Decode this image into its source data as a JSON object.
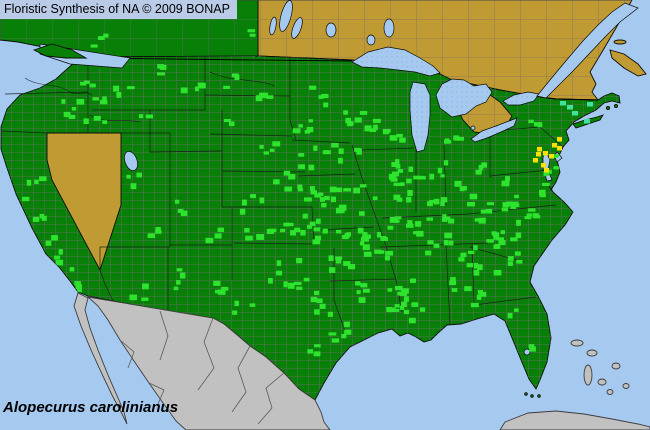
{
  "header": {
    "title": "Floristic Synthesis of NA © 2009 BONAP"
  },
  "footer": {
    "species": "Alopecurus carolinianus"
  },
  "legend": {
    "state_present_color": "#088008",
    "county_present_color": "#2EE32E",
    "county_rare_color": "#FFE000",
    "county_adventive_color": "#3FE39E",
    "state_absent_color": "#C09A32",
    "outside_region_color": "#C1C1C1",
    "water_color": "#A6CAEF",
    "county_line_color": "#6F6A72",
    "state_line_color": "#1A1A1A",
    "title_bg_color": "#B9CBE6",
    "meanings": {
      "dark_green": "species present in state/province",
      "bright_green": "species present in county",
      "yellow": "present in county, rare",
      "teal": "present in county, adventive",
      "tan": "species absent from state/province",
      "gray": "outside floristic coverage",
      "blue": "water"
    }
  },
  "map": {
    "county_clusters": [
      [
        88,
        90,
        7,
        16,
        10
      ],
      [
        62,
        108,
        4,
        10,
        10
      ],
      [
        95,
        122,
        3,
        12,
        8
      ],
      [
        30,
        185,
        4,
        10,
        14
      ],
      [
        42,
        225,
        5,
        12,
        16
      ],
      [
        60,
        260,
        4,
        10,
        12
      ],
      [
        76,
        287,
        3,
        9,
        6
      ],
      [
        118,
        85,
        3,
        10,
        8
      ],
      [
        138,
        112,
        2,
        8,
        6
      ],
      [
        158,
        68,
        3,
        12,
        8
      ],
      [
        192,
        82,
        3,
        12,
        8
      ],
      [
        222,
        122,
        2,
        8,
        6
      ],
      [
        135,
        182,
        3,
        10,
        10
      ],
      [
        152,
        225,
        3,
        10,
        10
      ],
      [
        182,
        205,
        3,
        10,
        10
      ],
      [
        210,
        233,
        3,
        10,
        8
      ],
      [
        172,
        278,
        4,
        12,
        10
      ],
      [
        135,
        290,
        3,
        10,
        8
      ],
      [
        215,
        288,
        4,
        12,
        10
      ],
      [
        240,
        305,
        3,
        10,
        8
      ],
      [
        96,
        38,
        3,
        10,
        7
      ],
      [
        243,
        30,
        2,
        8,
        6
      ],
      [
        228,
        80,
        3,
        10,
        8
      ],
      [
        268,
        95,
        4,
        14,
        10
      ],
      [
        300,
        118,
        5,
        16,
        12
      ],
      [
        322,
        95,
        4,
        14,
        10
      ],
      [
        350,
        110,
        3,
        10,
        8
      ],
      [
        372,
        122,
        4,
        10,
        8
      ],
      [
        392,
        138,
        5,
        12,
        10
      ],
      [
        345,
        152,
        5,
        16,
        10
      ],
      [
        310,
        155,
        5,
        16,
        12
      ],
      [
        262,
        150,
        4,
        14,
        10
      ],
      [
        285,
        178,
        6,
        16,
        12
      ],
      [
        310,
        196,
        9,
        20,
        14
      ],
      [
        345,
        198,
        9,
        18,
        14
      ],
      [
        285,
        222,
        8,
        18,
        12
      ],
      [
        315,
        230,
        7,
        16,
        12
      ],
      [
        350,
        232,
        8,
        16,
        12
      ],
      [
        372,
        250,
        8,
        14,
        14
      ],
      [
        385,
        225,
        6,
        12,
        12
      ],
      [
        385,
        185,
        8,
        16,
        14
      ],
      [
        400,
        162,
        6,
        12,
        12
      ],
      [
        418,
        185,
        6,
        12,
        12
      ],
      [
        438,
        165,
        4,
        10,
        10
      ],
      [
        452,
        140,
        4,
        10,
        8
      ],
      [
        460,
        185,
        4,
        10,
        10
      ],
      [
        478,
        170,
        3,
        8,
        8
      ],
      [
        418,
        222,
        6,
        14,
        10
      ],
      [
        438,
        242,
        6,
        14,
        10
      ],
      [
        465,
        255,
        5,
        12,
        10
      ],
      [
        485,
        268,
        5,
        12,
        10
      ],
      [
        455,
        285,
        4,
        10,
        8
      ],
      [
        478,
        295,
        4,
        10,
        8
      ],
      [
        398,
        285,
        7,
        12,
        12
      ],
      [
        408,
        310,
        6,
        12,
        10
      ],
      [
        385,
        305,
        4,
        10,
        8
      ],
      [
        290,
        272,
        9,
        22,
        16
      ],
      [
        320,
        300,
        6,
        16,
        12
      ],
      [
        335,
        330,
        5,
        12,
        10
      ],
      [
        305,
        345,
        3,
        10,
        8
      ],
      [
        505,
        230,
        7,
        14,
        12
      ],
      [
        528,
        215,
        6,
        12,
        10
      ],
      [
        518,
        196,
        5,
        12,
        10
      ],
      [
        540,
        186,
        4,
        8,
        8
      ],
      [
        498,
        180,
        3,
        8,
        8
      ],
      [
        535,
        125,
        3,
        8,
        6
      ],
      [
        548,
        168,
        3,
        6,
        6
      ],
      [
        512,
        310,
        2,
        6,
        5
      ],
      [
        525,
        345,
        2,
        5,
        5
      ],
      [
        558,
        150,
        3,
        6,
        8
      ],
      [
        345,
        125,
        3,
        10,
        8
      ],
      [
        250,
        200,
        4,
        12,
        10
      ],
      [
        255,
        235,
        4,
        12,
        10
      ],
      [
        335,
        260,
        6,
        14,
        10
      ],
      [
        360,
        290,
        5,
        12,
        10
      ],
      [
        430,
        205,
        5,
        12,
        10
      ],
      [
        445,
        220,
        4,
        10,
        8
      ],
      [
        490,
        245,
        4,
        10,
        8
      ],
      [
        512,
        255,
        4,
        10,
        8
      ],
      [
        472,
        210,
        4,
        10,
        10
      ],
      [
        495,
        205,
        4,
        10,
        8
      ]
    ],
    "rare_counties": [
      [
        537,
        147
      ],
      [
        543,
        151
      ],
      [
        549,
        154
      ],
      [
        533,
        158
      ],
      [
        541,
        163
      ],
      [
        552,
        143
      ],
      [
        557,
        137
      ],
      [
        544,
        168
      ],
      [
        536,
        152
      ],
      [
        557,
        146
      ]
    ],
    "adventive_counties": [
      [
        560,
        101
      ],
      [
        567,
        105
      ],
      [
        587,
        102
      ],
      [
        572,
        111
      ],
      [
        584,
        119
      ]
    ],
    "status_summary": {
      "absent_tan_regions": "Nevada; northern New England; eastern Canada (Saskatchewan eastward incl. Ontario, Quebec, Maritimes)",
      "present_green_regions": "most of conterminous United States; British Columbia and Alberta",
      "outside_gray_regions": "Mexico, Cuba, Bahamas"
    }
  }
}
